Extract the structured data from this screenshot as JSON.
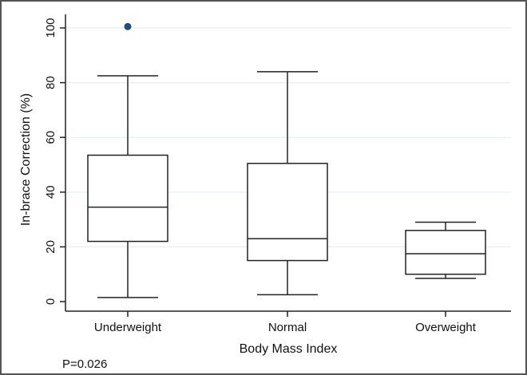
{
  "chart_data": {
    "type": "box",
    "title": "",
    "xlabel": "Body Mass Index",
    "ylabel": "In-brace Correction (%)",
    "ylim": [
      0,
      100
    ],
    "yticks": [
      0,
      20,
      40,
      60,
      80,
      100
    ],
    "grid": true,
    "categories": [
      "Underweight",
      "Normal",
      "Overweight"
    ],
    "boxes": [
      {
        "category": "Underweight",
        "min": 1.5,
        "q1": 22,
        "median": 34.5,
        "q3": 53.5,
        "max": 82.5,
        "outliers": [
          100.5
        ]
      },
      {
        "category": "Normal",
        "min": 2.5,
        "q1": 15,
        "median": 23,
        "q3": 50.5,
        "max": 84,
        "outliers": []
      },
      {
        "category": "Overweight",
        "min": 8.5,
        "q1": 10,
        "median": 17.5,
        "q3": 26,
        "max": 29,
        "outliers": []
      }
    ],
    "annotations": [
      "P=0.026"
    ],
    "colors": {
      "box": "#222222",
      "grid": "#e6eef0",
      "outlier": "#1f4e79"
    }
  }
}
